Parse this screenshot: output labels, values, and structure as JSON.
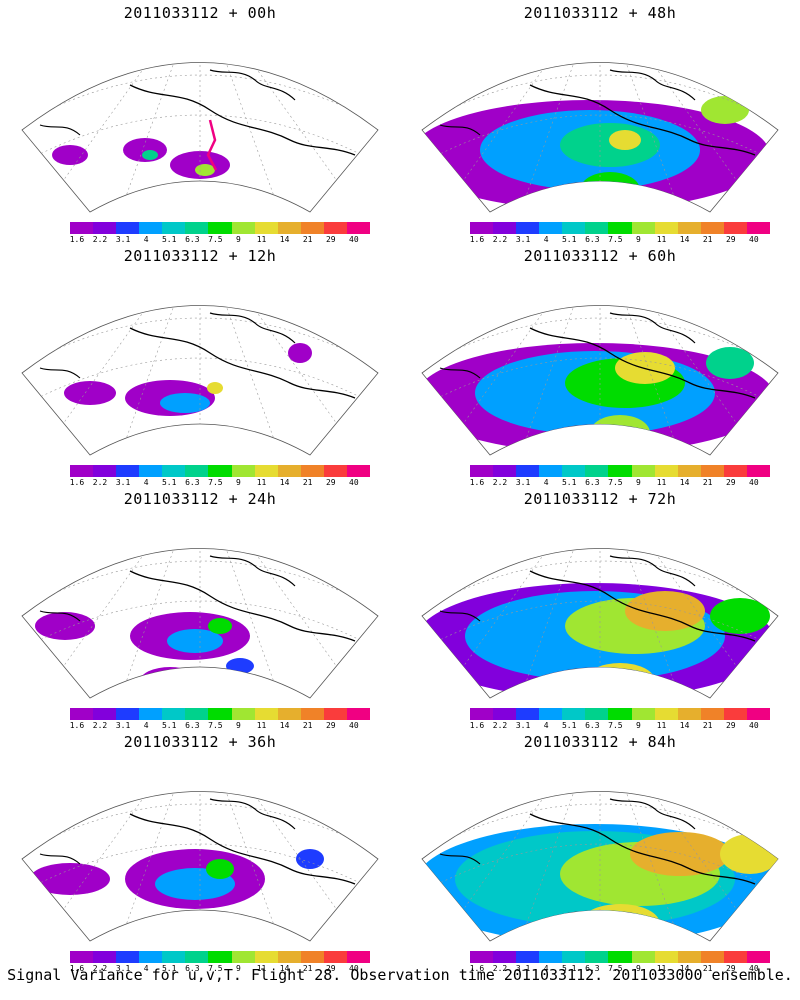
{
  "footer": "Signal Variance for u,v,T. Flight 28. Observation time 2011033112. 2011033000 ensemble.",
  "colorbar": {
    "colors": [
      "#a000c8",
      "#8200dc",
      "#1e3cff",
      "#00a0ff",
      "#00c8c8",
      "#00d28c",
      "#00dc00",
      "#a0e632",
      "#e6dc32",
      "#e6af2d",
      "#f08228",
      "#fa3c3c",
      "#f00082"
    ],
    "labels": [
      "1.6",
      "2.2",
      "3.1",
      "4",
      "5.1",
      "6.3",
      "7.5",
      "9",
      "11",
      "14",
      "21",
      "29",
      "40"
    ]
  },
  "panels": [
    {
      "title": "2011033112 + 00h",
      "level": 0
    },
    {
      "title": "2011033112 + 48h",
      "level": 4
    },
    {
      "title": "2011033112 + 12h",
      "level": 1
    },
    {
      "title": "2011033112 + 60h",
      "level": 5
    },
    {
      "title": "2011033112 + 24h",
      "level": 2
    },
    {
      "title": "2011033112 + 72h",
      "level": 6
    },
    {
      "title": "2011033112 + 36h",
      "level": 3
    },
    {
      "title": "2011033112 + 84h",
      "level": 7
    }
  ]
}
